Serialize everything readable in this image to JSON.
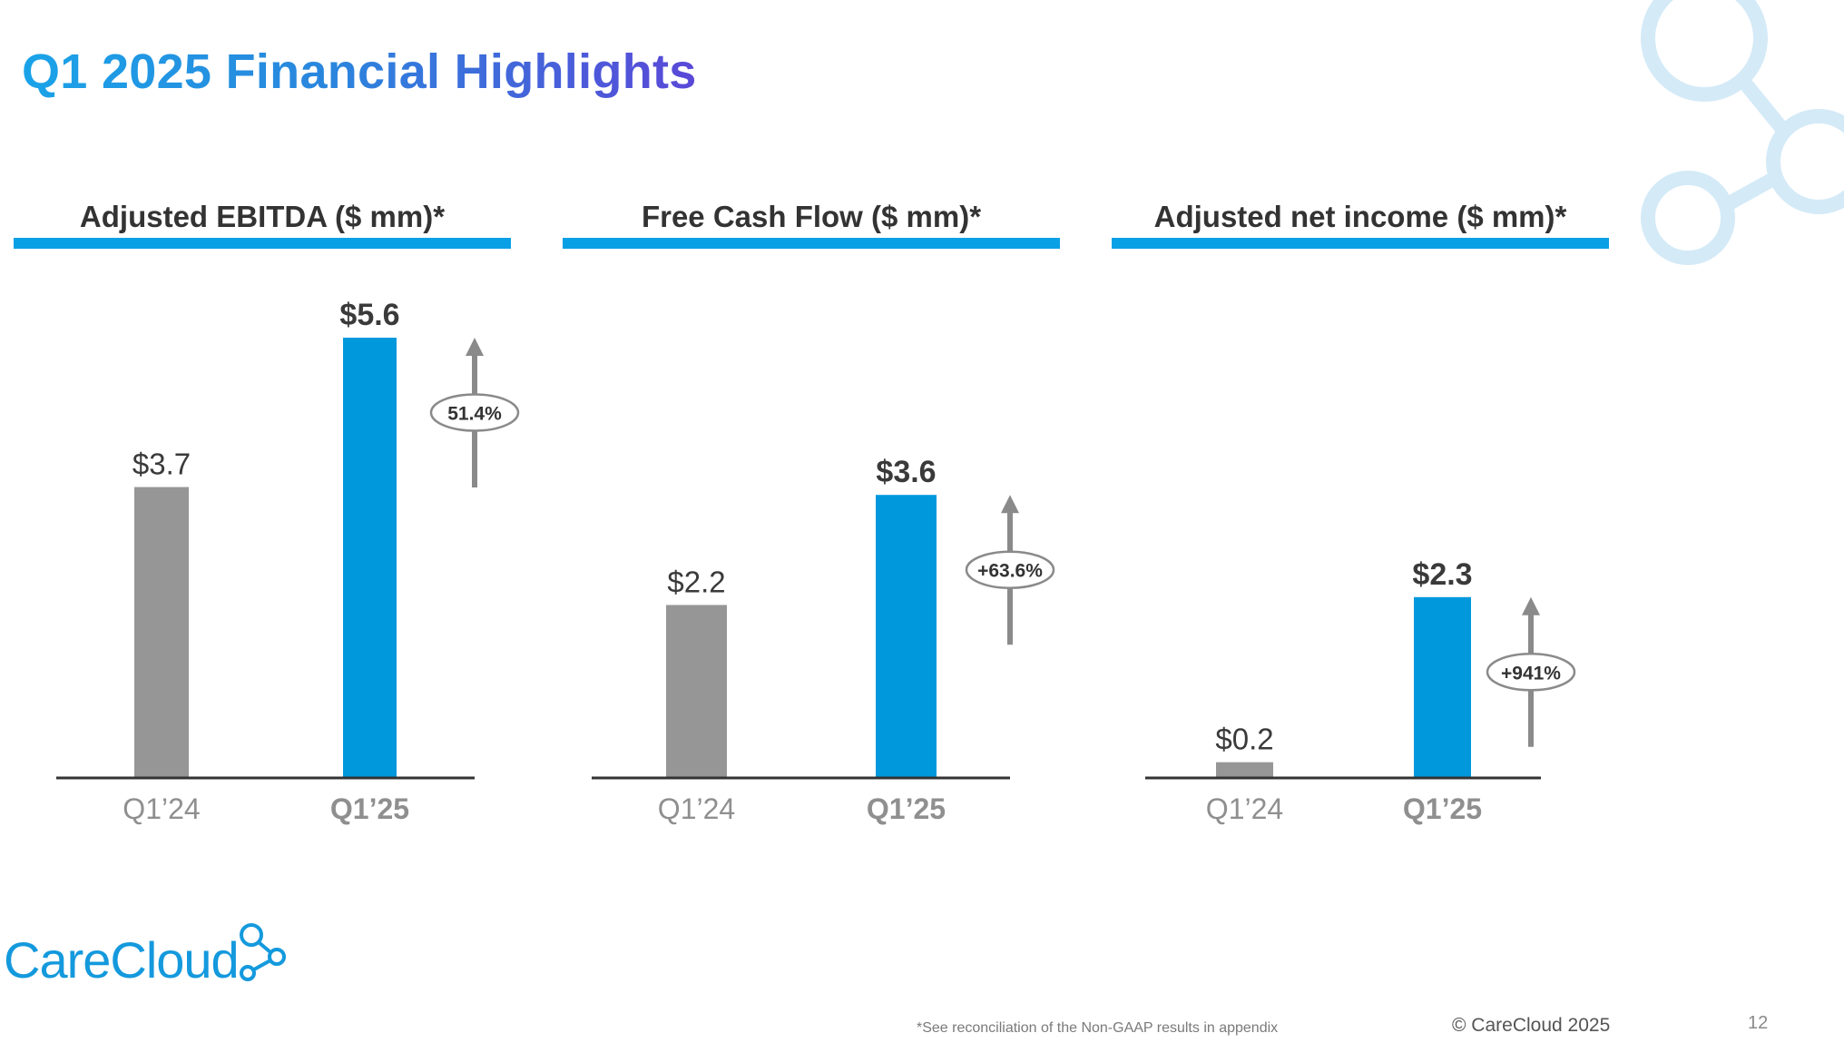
{
  "slide": {
    "title": "Q1 2025 Financial Highlights",
    "footnote": "*See reconciliation of the Non-GAAP results in appendix",
    "copyright": "© CareCloud 2025",
    "page_number": "12",
    "logo_text": "CareCloud"
  },
  "colors": {
    "accent": "#0098dd",
    "prior": "#969696",
    "rule": "#0aa0e6",
    "title_start": "#1aa3e8",
    "title_end": "#5a48d8",
    "decoration": "#d4eaf7"
  },
  "chart_data": [
    {
      "type": "bar",
      "title": "Adjusted EBITDA ($ mm)*",
      "categories": [
        "Q1’24",
        "Q1’25"
      ],
      "values": [
        3.7,
        5.6
      ],
      "value_labels": [
        "$3.7",
        "$5.6"
      ],
      "change_label": "51.4%",
      "ylim": [
        0,
        5.6
      ]
    },
    {
      "type": "bar",
      "title": "Free Cash Flow ($ mm)*",
      "categories": [
        "Q1’24",
        "Q1’25"
      ],
      "values": [
        2.2,
        3.6
      ],
      "value_labels": [
        "$2.2",
        "$3.6"
      ],
      "change_label": "+63.6%",
      "ylim": [
        0,
        5.6
      ]
    },
    {
      "type": "bar",
      "title": "Adjusted net income ($ mm)*",
      "categories": [
        "Q1’24",
        "Q1’25"
      ],
      "values": [
        0.2,
        2.3
      ],
      "value_labels": [
        "$0.2",
        "$2.3"
      ],
      "change_label": "+941%",
      "ylim": [
        0,
        5.6
      ]
    }
  ]
}
